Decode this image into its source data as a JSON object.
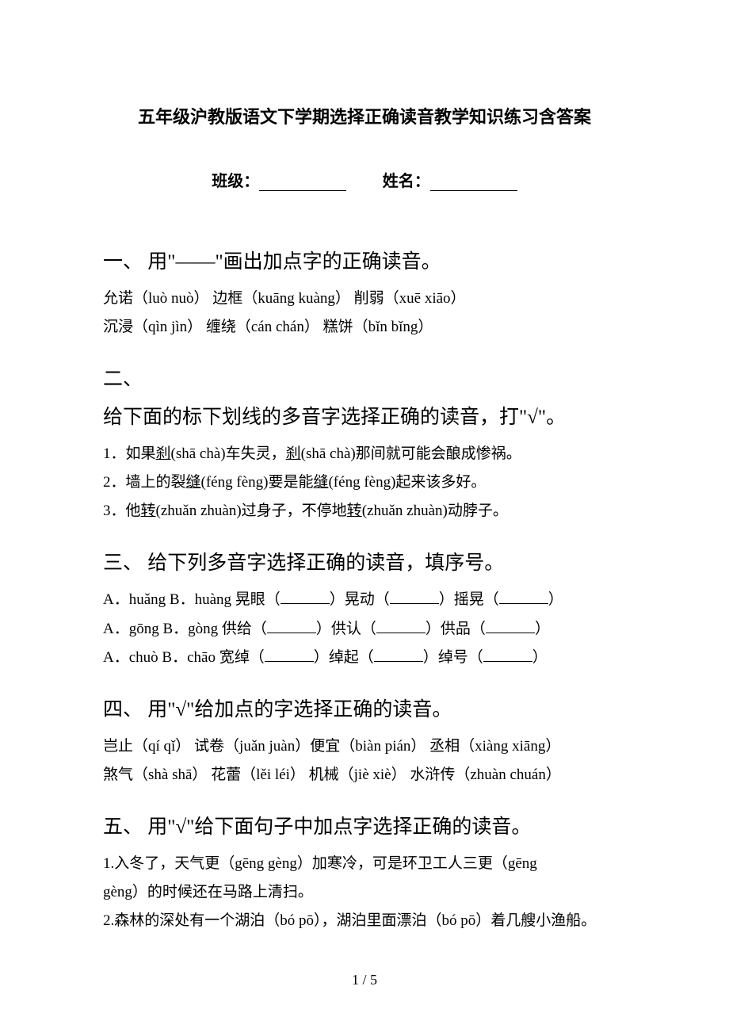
{
  "title": "五年级沪教版语文下学期选择正确读音教学知识练习含答案",
  "labels": {
    "class": "班级：",
    "name": "姓名："
  },
  "sections": {
    "s1": {
      "heading": "一、 用\"——\"画出加点字的正确读音。",
      "lines": [
        "允诺（luò  nuò）    边框（kuāng kuàng）    削弱（xuē   xiāo）",
        "沉浸（qìn   jìn）     缠绕（cán    chán）    糕饼（bǐn   bǐng）"
      ]
    },
    "s2": {
      "heading_a": "二、",
      "heading_b": "给下面的标下划线的多音字选择正确的读音，打\"√\"。",
      "items": [
        {
          "pre": "1．如果",
          "u1": "刹",
          "mid1": "(shā chà)车失灵，",
          "u2": "刹",
          "mid2": "(shā chà)那间就可能会酿成惨祸。"
        },
        {
          "pre": "2．墙上的裂",
          "u1": "缝",
          "mid1": "(féng fèng)要是能",
          "u2": "缝",
          "mid2": "(féng fèng)起来该多好。"
        },
        {
          "pre": "3．他",
          "u1": "转",
          "mid1": "(zhuǎn zhuàn)过身子，不停地",
          "u2": "转",
          "mid2": "(zhuǎn zhuàn)动脖子。"
        }
      ]
    },
    "s3": {
      "heading": "三、 给下列多音字选择正确的读音，填序号。",
      "rows": [
        {
          "a": "A．huǎng",
          "b": "B．huàng",
          "w1": "晃眼（",
          "w2": "）晃动（",
          "w3": "）摇晃（",
          "w4": "）"
        },
        {
          "a": "A．gōng",
          "b": "B．gòng",
          "w1": "供给（",
          "w2": "）供认（",
          "w3": "）供品（",
          "w4": "）"
        },
        {
          "a": "A．chuò",
          "b": "B．chāo",
          "w1": "宽绰（",
          "w2": "）绰起（",
          "w3": "）绰号（",
          "w4": "）"
        }
      ]
    },
    "s4": {
      "heading": "四、 用\"√\"给加点的字选择正确的读音。",
      "lines": [
        "岂止（qí qǐ）  试卷（juǎn juàn）便宜（biàn  pián）  丞相（xiàng xiāng）",
        "煞气（shà shā） 花蕾（lěi léi）  机械（jiè xiè）    水浒传（zhuàn chuán）"
      ]
    },
    "s5": {
      "heading": "五、 用\"√\"给下面句子中加点字选择正确的读音。",
      "lines": [
        "1.入冬了，天气更（gēng gèng）加寒冷，可是环卫工人三更（gēng",
        "gèng）的时候还在马路上清扫。",
        "2.森林的深处有一个湖泊（bó pō），湖泊里面漂泊（bó pō）着几艘小渔船。"
      ]
    }
  },
  "page_num": "1 / 5"
}
